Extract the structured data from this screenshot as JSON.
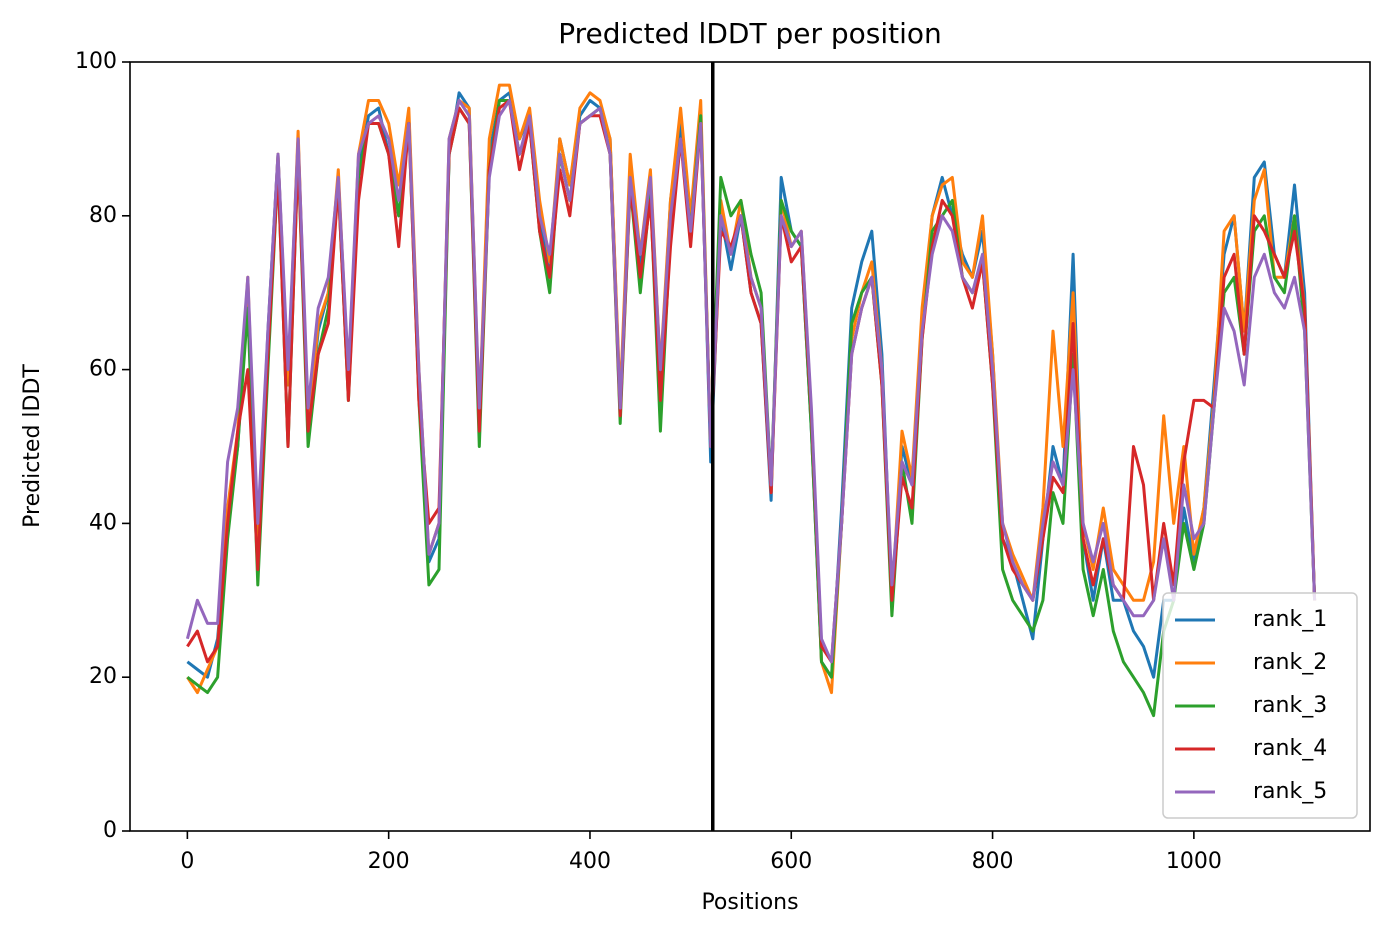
{
  "chart_data": {
    "type": "line",
    "title": "Predicted lDDT per position",
    "xlabel": "Positions",
    "ylabel": "Predicted lDDT",
    "xlim": [
      -57,
      1175
    ],
    "ylim": [
      0,
      100
    ],
    "xticks": [
      0,
      200,
      400,
      600,
      800,
      1000
    ],
    "yticks": [
      0,
      20,
      40,
      60,
      80,
      100
    ],
    "legend": "lower right",
    "vline": 522,
    "vline_color": "#000000",
    "x": [
      0,
      10,
      20,
      30,
      40,
      50,
      60,
      70,
      80,
      90,
      100,
      110,
      120,
      130,
      140,
      150,
      160,
      170,
      180,
      190,
      200,
      210,
      220,
      230,
      240,
      250,
      260,
      270,
      280,
      290,
      300,
      310,
      320,
      330,
      340,
      350,
      360,
      370,
      380,
      390,
      400,
      410,
      420,
      430,
      440,
      450,
      460,
      470,
      480,
      490,
      500,
      510,
      520,
      530,
      540,
      550,
      560,
      570,
      580,
      590,
      600,
      610,
      620,
      630,
      640,
      650,
      660,
      670,
      680,
      690,
      700,
      710,
      720,
      730,
      740,
      750,
      760,
      770,
      780,
      790,
      800,
      810,
      820,
      830,
      840,
      850,
      860,
      870,
      880,
      890,
      900,
      910,
      920,
      930,
      940,
      950,
      960,
      970,
      980,
      990,
      1000,
      1010,
      1020,
      1030,
      1040,
      1050,
      1060,
      1070,
      1080,
      1090,
      1100,
      1110,
      1120
    ],
    "series": [
      {
        "name": "rank_1",
        "color": "#1f77b4",
        "values": [
          22,
          21,
          20,
          25,
          40,
          50,
          70,
          35,
          65,
          88,
          58,
          90,
          52,
          65,
          70,
          85,
          58,
          86,
          93,
          94,
          88,
          80,
          93,
          58,
          35,
          38,
          88,
          96,
          94,
          52,
          88,
          95,
          96,
          90,
          93,
          80,
          72,
          90,
          84,
          93,
          95,
          94,
          90,
          55,
          85,
          73,
          84,
          58,
          82,
          92,
          78,
          93,
          48,
          80,
          73,
          80,
          70,
          66,
          43,
          85,
          78,
          76,
          52,
          22,
          20,
          42,
          68,
          74,
          78,
          62,
          30,
          50,
          45,
          66,
          80,
          85,
          80,
          75,
          72,
          78,
          62,
          38,
          35,
          30,
          25,
          38,
          50,
          45,
          75,
          38,
          30,
          38,
          30,
          30,
          26,
          24,
          20,
          30,
          30,
          42,
          35,
          42,
          58,
          75,
          80,
          65,
          85,
          87,
          75,
          72,
          84,
          70,
          30
        ]
      },
      {
        "name": "rank_2",
        "color": "#ff7f0e",
        "values": [
          20,
          18,
          21,
          24,
          42,
          52,
          72,
          36,
          64,
          88,
          58,
          91,
          52,
          66,
          70,
          86,
          58,
          88,
          95,
          95,
          92,
          84,
          94,
          60,
          36,
          40,
          90,
          95,
          94,
          54,
          90,
          97,
          97,
          90,
          94,
          82,
          74,
          90,
          84,
          94,
          96,
          95,
          90,
          56,
          88,
          75,
          86,
          60,
          82,
          94,
          80,
          95,
          50,
          82,
          75,
          82,
          72,
          68,
          44,
          82,
          76,
          78,
          54,
          22,
          18,
          40,
          64,
          70,
          74,
          60,
          30,
          52,
          46,
          68,
          80,
          84,
          85,
          74,
          72,
          80,
          62,
          40,
          36,
          33,
          30,
          42,
          65,
          50,
          70,
          40,
          34,
          42,
          34,
          32,
          30,
          30,
          35,
          54,
          40,
          50,
          36,
          42,
          56,
          78,
          80,
          65,
          82,
          86,
          72,
          72,
          80,
          68,
          30
        ]
      },
      {
        "name": "rank_3",
        "color": "#2ca02c",
        "values": [
          20,
          19,
          18,
          20,
          38,
          50,
          68,
          32,
          60,
          86,
          50,
          88,
          50,
          62,
          68,
          84,
          56,
          85,
          92,
          92,
          88,
          80,
          92,
          56,
          32,
          34,
          88,
          94,
          92,
          50,
          86,
          95,
          95,
          88,
          92,
          78,
          70,
          88,
          82,
          92,
          93,
          94,
          88,
          53,
          84,
          70,
          83,
          52,
          78,
          90,
          78,
          93,
          50,
          85,
          80,
          82,
          75,
          70,
          45,
          82,
          78,
          76,
          52,
          22,
          20,
          40,
          66,
          70,
          72,
          58,
          28,
          48,
          40,
          64,
          78,
          80,
          82,
          72,
          70,
          74,
          58,
          34,
          30,
          28,
          26,
          30,
          44,
          40,
          62,
          34,
          28,
          34,
          26,
          22,
          20,
          18,
          15,
          26,
          30,
          40,
          34,
          40,
          55,
          70,
          72,
          62,
          78,
          80,
          72,
          70,
          80,
          65,
          30
        ]
      },
      {
        "name": "rank_4",
        "color": "#d62728",
        "values": [
          24,
          26,
          22,
          24,
          40,
          52,
          60,
          34,
          62,
          86,
          50,
          88,
          52,
          62,
          66,
          84,
          56,
          82,
          92,
          92,
          88,
          76,
          92,
          56,
          40,
          42,
          88,
          94,
          92,
          52,
          86,
          94,
          95,
          86,
          92,
          78,
          72,
          86,
          80,
          92,
          93,
          93,
          88,
          54,
          84,
          72,
          82,
          56,
          76,
          90,
          76,
          92,
          50,
          78,
          76,
          80,
          70,
          66,
          44,
          80,
          74,
          76,
          54,
          24,
          22,
          40,
          62,
          68,
          72,
          58,
          30,
          46,
          42,
          64,
          76,
          82,
          80,
          72,
          68,
          74,
          58,
          38,
          34,
          32,
          30,
          38,
          46,
          44,
          66,
          38,
          32,
          38,
          32,
          30,
          50,
          45,
          30,
          40,
          32,
          48,
          56,
          56,
          55,
          72,
          75,
          62,
          80,
          78,
          75,
          72,
          78,
          68,
          30
        ]
      },
      {
        "name": "rank_5",
        "color": "#9467bd",
        "values": [
          25,
          30,
          27,
          27,
          48,
          55,
          72,
          40,
          65,
          88,
          60,
          90,
          55,
          68,
          72,
          85,
          60,
          88,
          92,
          93,
          90,
          82,
          92,
          60,
          36,
          40,
          90,
          95,
          93,
          55,
          85,
          93,
          95,
          88,
          93,
          80,
          75,
          88,
          82,
          92,
          93,
          94,
          88,
          55,
          85,
          75,
          85,
          60,
          80,
          90,
          78,
          92,
          50,
          80,
          75,
          80,
          72,
          68,
          45,
          80,
          76,
          78,
          55,
          25,
          22,
          40,
          62,
          68,
          72,
          60,
          32,
          48,
          45,
          65,
          75,
          80,
          78,
          72,
          70,
          75,
          60,
          40,
          35,
          32,
          30,
          40,
          48,
          45,
          60,
          40,
          35,
          40,
          32,
          30,
          28,
          28,
          30,
          38,
          30,
          45,
          38,
          40,
          55,
          68,
          65,
          58,
          72,
          75,
          70,
          68,
          72,
          65,
          30
        ]
      }
    ]
  }
}
